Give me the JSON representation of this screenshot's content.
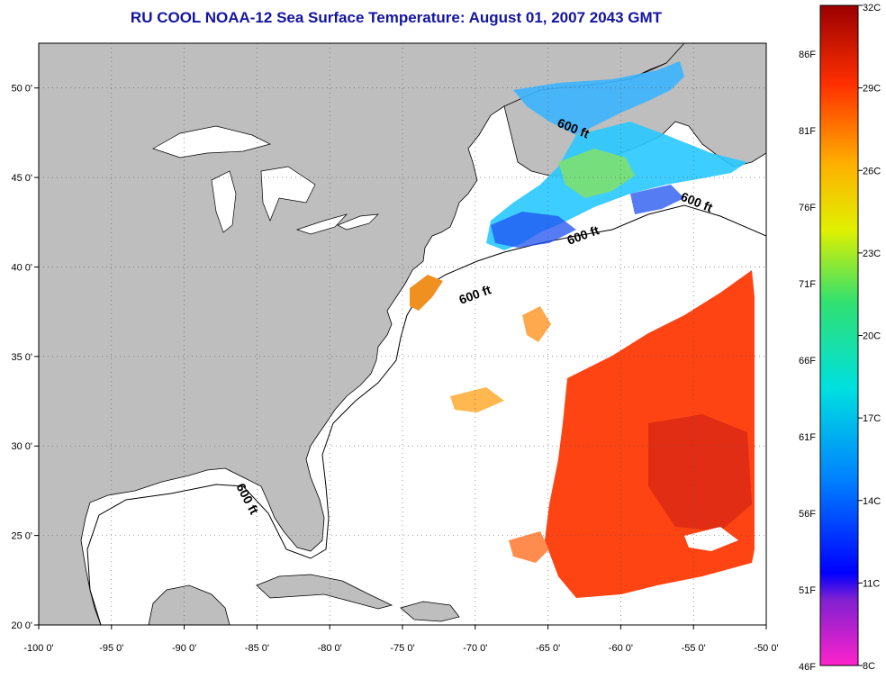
{
  "title": "RU COOL  NOAA-12  Sea Surface Temperature:  August 01, 2007 2043 GMT",
  "map": {
    "lon_range": [
      -100,
      -50
    ],
    "lat_range": [
      20,
      52.5
    ],
    "lon_ticks": [
      "-100 0'",
      "-95 0'",
      "-90 0'",
      "-85 0'",
      "-80 0'",
      "-75 0'",
      "-70 0'",
      "-65 0'",
      "-60 0'",
      "-55 0'",
      "-50 0'"
    ],
    "lat_ticks": [
      "20 0'",
      "25 0'",
      "30 0'",
      "35 0'",
      "40 0'",
      "45 0'",
      "50 0'"
    ],
    "contour_labels": [
      "600 ft",
      "600 ft",
      "600 ft",
      "600 ft",
      "600 ft"
    ],
    "colors": {
      "land": "#bebebe",
      "ocean": "#ffffff",
      "cold": "#3cb4ff",
      "warm": "#ff3c14"
    }
  },
  "colorbar": {
    "celsius": [
      "32C",
      "29C",
      "26C",
      "23C",
      "20C",
      "17C",
      "14C",
      "11C",
      "8C"
    ],
    "fahrenheit": [
      "86F",
      "81F",
      "76F",
      "71F",
      "66F",
      "61F",
      "56F",
      "51F",
      "46F"
    ]
  }
}
